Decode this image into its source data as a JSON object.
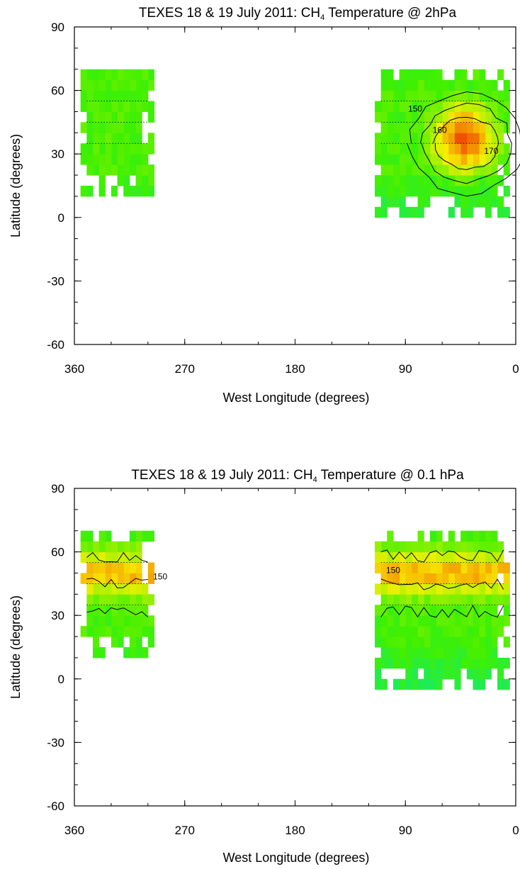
{
  "chart_data": [
    {
      "type": "heatmap",
      "title_prefix": "TEXES 18 & 19 July 2011: CH",
      "title_subscript": "4",
      "title_suffix": " Temperature @ 2hPa",
      "xlabel": "West Longitude (degrees)",
      "ylabel": "Latitude (degrees)",
      "xlim": [
        360,
        0
      ],
      "ylim": [
        -60,
        90
      ],
      "xticks": [
        360,
        270,
        180,
        90,
        0
      ],
      "yticks": [
        90,
        60,
        30,
        0,
        -30,
        -60
      ],
      "grid": false,
      "regions": [
        {
          "lon_min": 295,
          "lon_max": 355,
          "lat_min": 10,
          "lat_max": 70
        },
        {
          "lon_min": 5,
          "lon_max": 115,
          "lat_min": 0,
          "lat_max": 70
        }
      ],
      "hotspot": {
        "lon": 40,
        "lat": 35,
        "peak": 180
      },
      "bands": [],
      "contours": [
        {
          "label": "150",
          "level": 150
        },
        {
          "label": "160",
          "level": 160
        },
        {
          "label": "170",
          "level": 170
        }
      ],
      "colors": {
        "cold": "#00e8a0",
        "mid": "#40f000",
        "warm": "#f8f000",
        "hot": "#f05000"
      }
    },
    {
      "type": "heatmap",
      "title_prefix": "TEXES 18 & 19 July 2011: CH",
      "title_subscript": "4",
      "title_suffix": " Temperature @ 0.1 hPa",
      "xlabel": "West Longitude (degrees)",
      "ylabel": "Latitude (degrees)",
      "xlim": [
        360,
        0
      ],
      "ylim": [
        -60,
        90
      ],
      "xticks": [
        360,
        270,
        180,
        90,
        0
      ],
      "yticks": [
        90,
        60,
        30,
        0,
        -30,
        -60
      ],
      "grid": false,
      "regions": [
        {
          "lon_min": 295,
          "lon_max": 355,
          "lat_min": 10,
          "lat_max": 70
        },
        {
          "lon_min": 5,
          "lon_max": 115,
          "lat_min": -5,
          "lat_max": 70
        }
      ],
      "hotspot": null,
      "bands": [
        {
          "lat_min": 35,
          "lat_max": 60
        }
      ],
      "contours": [
        {
          "label": "150",
          "level": 150
        }
      ],
      "colors": {
        "cold": "#00e8a0",
        "mid": "#40f000",
        "warm": "#f8f000",
        "hot": "#f05000"
      }
    }
  ]
}
